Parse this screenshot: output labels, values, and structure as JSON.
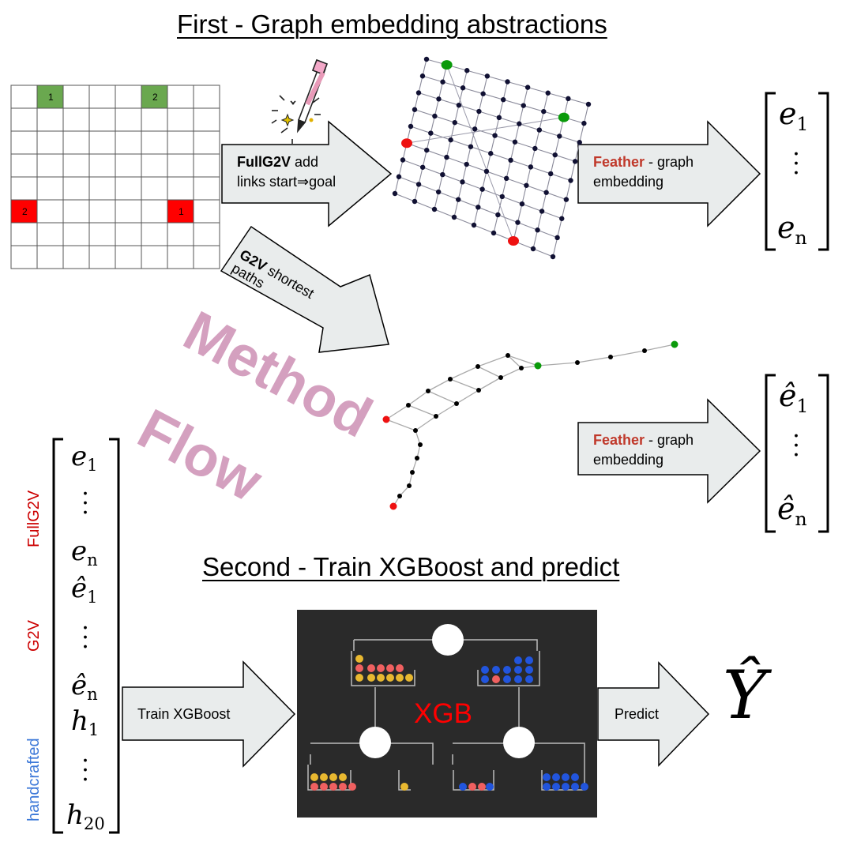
{
  "titles": {
    "first": "First - Graph embedding abstractions",
    "second": "Second - Train XGBoost and predict"
  },
  "grid": {
    "cells": [
      {
        "row": 0,
        "col": 1,
        "label": "1",
        "color": "#6aa84f"
      },
      {
        "row": 0,
        "col": 5,
        "label": "2",
        "color": "#6aa84f"
      },
      {
        "row": 5,
        "col": 0,
        "label": "2",
        "color": "#ff0000"
      },
      {
        "row": 5,
        "col": 6,
        "label": "1",
        "color": "#ff0000"
      }
    ]
  },
  "arrows": {
    "fullg2v": {
      "bold": "FullG2V",
      "rest1": " add",
      "line2": "links start⇒goal"
    },
    "g2v": {
      "bold": "G2V",
      "rest1": " shortest",
      "line2": "paths"
    },
    "feather1": {
      "bold": "Feather",
      "rest1": " - graph",
      "line2": "embedding"
    },
    "feather2": {
      "bold": "Feather",
      "rest1": " - graph",
      "line2": "embedding"
    },
    "train": {
      "label": "Train XGBoost"
    },
    "predict": {
      "label": "Predict"
    }
  },
  "watermark": {
    "line1": "Method",
    "line2": "Flow"
  },
  "vectors": {
    "e": {
      "top": "e",
      "top_sub": "1",
      "bottom": "e",
      "bottom_sub": "n"
    },
    "ehat": {
      "top": "ê",
      "top_sub": "1",
      "bottom": "ê",
      "bottom_sub": "n"
    },
    "big": [
      {
        "sym": "e",
        "sub": "1"
      },
      {
        "sym": "e",
        "sub": "n"
      },
      {
        "sym": "ê",
        "sub": "1"
      },
      {
        "sym": "ê",
        "sub": "n"
      },
      {
        "sym": "h",
        "sub": "1"
      },
      {
        "sym": "h",
        "sub": "20"
      }
    ]
  },
  "side_labels": {
    "fullg2v": {
      "text": "FullG2V",
      "color": "#cc0000"
    },
    "g2v": {
      "text": "G2V",
      "color": "#cc0000"
    },
    "handcrafted": {
      "text": "handcrafted",
      "color": "#3c78d8"
    }
  },
  "xgb": {
    "label": "XGB",
    "label_color": "#ff0000"
  },
  "output": {
    "symbol": "Ŷ"
  },
  "colors": {
    "node": "#111133",
    "green": "#0a9a0a",
    "red": "#ee1111",
    "arrow_fill": "#e9ecec",
    "ball_yellow": "#e8b830",
    "ball_red": "#f06060",
    "ball_blue": "#2255dd"
  }
}
